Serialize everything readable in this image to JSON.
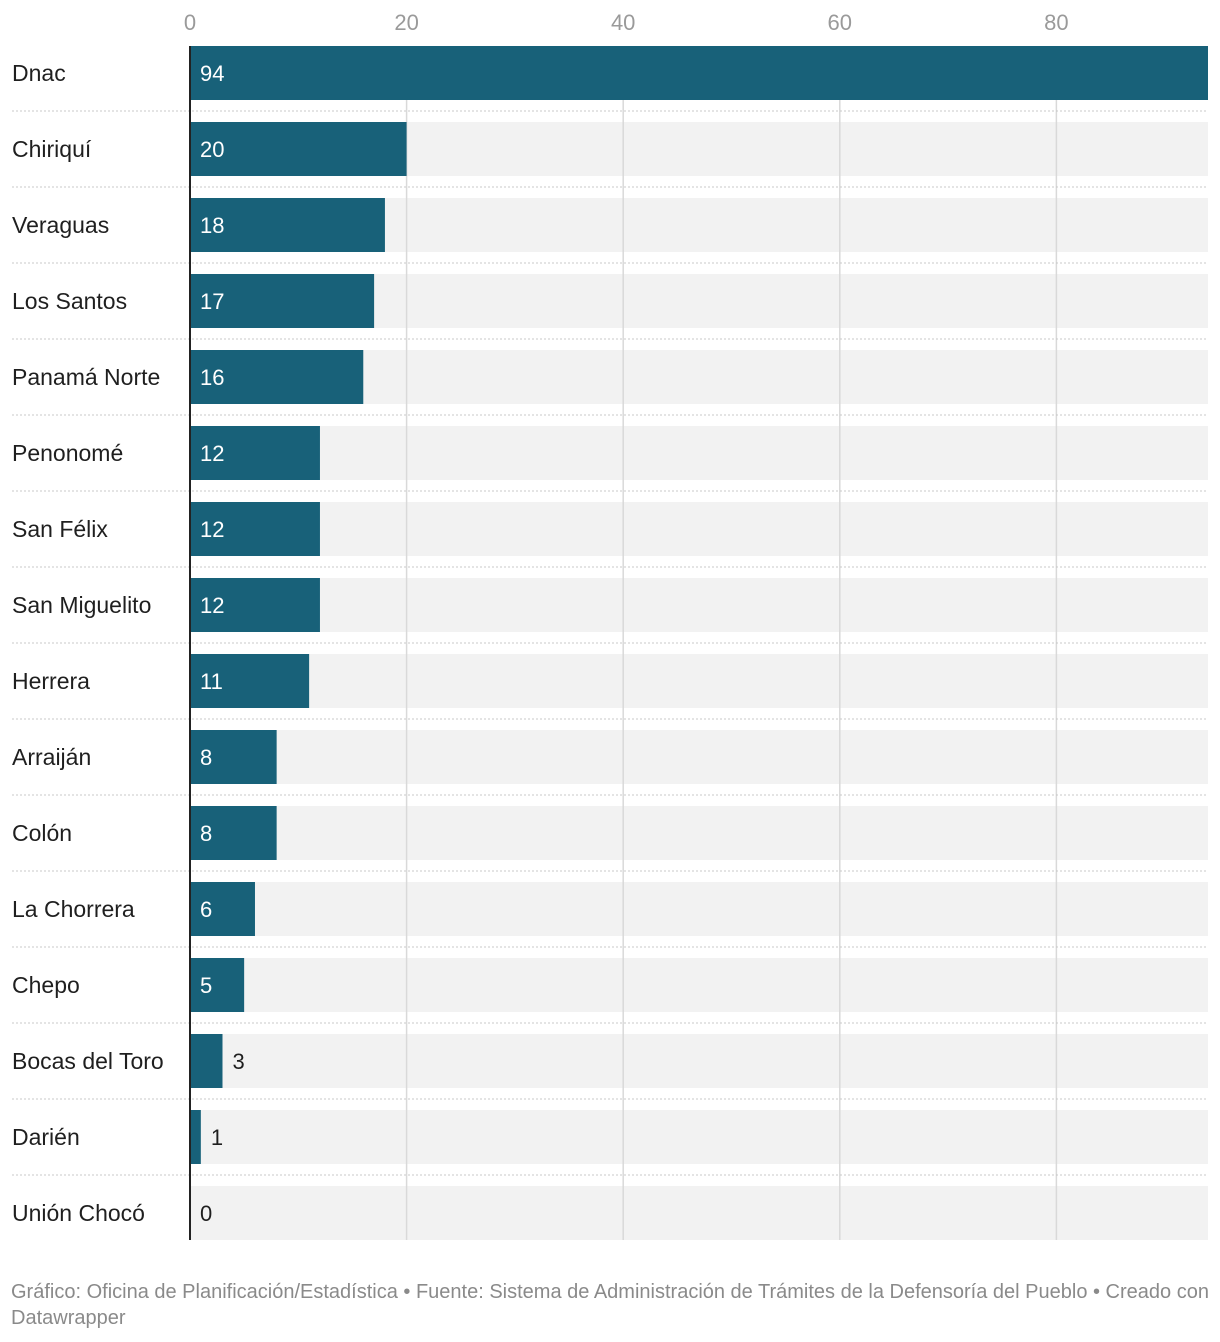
{
  "colors": {
    "bar": "#186179",
    "track": "#f2f2f2",
    "grid": "#d9d9d9",
    "separator": "#c8c8c8",
    "tick_text": "#9a9a9a",
    "label_text": "#1f1f1f",
    "value_inside": "#ffffff",
    "value_outside": "#1f1f1f",
    "footer_text": "#8a8a8a"
  },
  "chart_data": {
    "type": "bar",
    "orientation": "horizontal",
    "title": "",
    "xlabel": "",
    "ylabel": "",
    "xlim": [
      0,
      94
    ],
    "ticks": [
      0,
      20,
      40,
      60,
      80
    ],
    "grid": true,
    "categories": [
      "Dnac",
      "Chiriquí",
      "Veraguas",
      "Los Santos",
      "Panamá Norte",
      "Penonomé",
      "San Félix",
      "San Miguelito",
      "Herrera",
      "Arraiján",
      "Colón",
      "La Chorrera",
      "Chepo",
      "Bocas del Toro",
      "Darién",
      "Unión Chocó"
    ],
    "values": [
      94,
      20,
      18,
      17,
      16,
      12,
      12,
      12,
      11,
      8,
      8,
      6,
      5,
      3,
      1,
      0
    ]
  },
  "footer": {
    "text": "Gráfico: Oficina de Planificación/Estadística • Fuente: Sistema de Administración de Trámites de la Defensoría del Pueblo • Creado con Datawrapper"
  }
}
